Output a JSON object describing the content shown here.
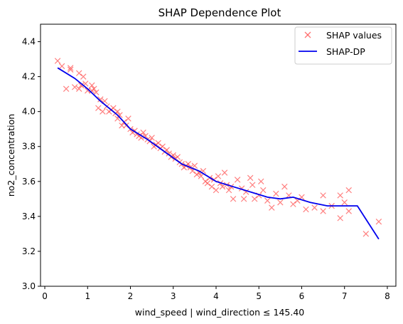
{
  "chart_data": {
    "type": "scatter",
    "title": "SHAP Dependence Plot",
    "xlabel": "wind_speed | wind_direction ≤ 145.40",
    "ylabel": "no2_concentration",
    "xlim": [
      -0.1,
      8.2
    ],
    "ylim": [
      3.0,
      4.5
    ],
    "xticks": [
      0,
      1,
      2,
      3,
      4,
      5,
      6,
      7,
      8
    ],
    "yticks": [
      3.0,
      3.2,
      3.4,
      3.6,
      3.8,
      4.0,
      4.2,
      4.4
    ],
    "grid": false,
    "legend_position": "upper-right",
    "colors": {
      "scatter": "#ff5555",
      "line": "#0000ee"
    },
    "series": [
      {
        "name": "SHAP values",
        "kind": "scatter",
        "marker": "x",
        "points": [
          [
            0.3,
            4.29
          ],
          [
            0.4,
            4.26
          ],
          [
            0.5,
            4.13
          ],
          [
            0.6,
            4.25
          ],
          [
            0.6,
            4.24
          ],
          [
            0.7,
            4.14
          ],
          [
            0.8,
            4.22
          ],
          [
            0.8,
            4.13
          ],
          [
            0.85,
            4.15
          ],
          [
            0.9,
            4.2
          ],
          [
            0.95,
            4.16
          ],
          [
            1.0,
            4.12
          ],
          [
            1.1,
            4.12
          ],
          [
            1.1,
            4.15
          ],
          [
            1.15,
            4.13
          ],
          [
            1.2,
            4.11
          ],
          [
            1.25,
            4.02
          ],
          [
            1.3,
            4.07
          ],
          [
            1.35,
            4.0
          ],
          [
            1.4,
            4.06
          ],
          [
            1.45,
            4.03
          ],
          [
            1.5,
            4.0
          ],
          [
            1.55,
            4.01
          ],
          [
            1.6,
            4.02
          ],
          [
            1.65,
            3.99
          ],
          [
            1.7,
            3.96
          ],
          [
            1.7,
            4.0
          ],
          [
            1.75,
            3.98
          ],
          [
            1.8,
            3.92
          ],
          [
            1.85,
            3.94
          ],
          [
            1.9,
            3.92
          ],
          [
            1.95,
            3.96
          ],
          [
            2.0,
            3.9
          ],
          [
            2.05,
            3.88
          ],
          [
            2.1,
            3.89
          ],
          [
            2.15,
            3.87
          ],
          [
            2.2,
            3.86
          ],
          [
            2.25,
            3.85
          ],
          [
            2.3,
            3.88
          ],
          [
            2.35,
            3.86
          ],
          [
            2.4,
            3.84
          ],
          [
            2.45,
            3.83
          ],
          [
            2.5,
            3.85
          ],
          [
            2.55,
            3.8
          ],
          [
            2.6,
            3.81
          ],
          [
            2.65,
            3.82
          ],
          [
            2.7,
            3.79
          ],
          [
            2.75,
            3.8
          ],
          [
            2.8,
            3.77
          ],
          [
            2.85,
            3.78
          ],
          [
            2.9,
            3.76
          ],
          [
            2.95,
            3.74
          ],
          [
            3.0,
            3.75
          ],
          [
            3.05,
            3.73
          ],
          [
            3.1,
            3.74
          ],
          [
            3.15,
            3.71
          ],
          [
            3.2,
            3.7
          ],
          [
            3.25,
            3.68
          ],
          [
            3.3,
            3.69
          ],
          [
            3.35,
            3.7
          ],
          [
            3.4,
            3.68
          ],
          [
            3.45,
            3.66
          ],
          [
            3.5,
            3.69
          ],
          [
            3.55,
            3.64
          ],
          [
            3.6,
            3.65
          ],
          [
            3.65,
            3.63
          ],
          [
            3.7,
            3.66
          ],
          [
            3.75,
            3.6
          ],
          [
            3.8,
            3.59
          ],
          [
            3.85,
            3.62
          ],
          [
            3.9,
            3.57
          ],
          [
            3.95,
            3.61
          ],
          [
            4.0,
            3.55
          ],
          [
            4.05,
            3.63
          ],
          [
            4.1,
            3.59
          ],
          [
            4.15,
            3.57
          ],
          [
            4.2,
            3.65
          ],
          [
            4.25,
            3.58
          ],
          [
            4.3,
            3.55
          ],
          [
            4.35,
            3.57
          ],
          [
            4.4,
            3.5
          ],
          [
            4.5,
            3.61
          ],
          [
            4.6,
            3.56
          ],
          [
            4.65,
            3.5
          ],
          [
            4.7,
            3.54
          ],
          [
            4.8,
            3.62
          ],
          [
            4.85,
            3.58
          ],
          [
            4.9,
            3.5
          ],
          [
            5.0,
            3.52
          ],
          [
            5.05,
            3.6
          ],
          [
            5.1,
            3.55
          ],
          [
            5.2,
            3.49
          ],
          [
            5.3,
            3.45
          ],
          [
            5.4,
            3.53
          ],
          [
            5.5,
            3.48
          ],
          [
            5.6,
            3.57
          ],
          [
            5.7,
            3.52
          ],
          [
            5.8,
            3.47
          ],
          [
            5.9,
            3.49
          ],
          [
            6.0,
            3.51
          ],
          [
            6.1,
            3.44
          ],
          [
            6.3,
            3.45
          ],
          [
            6.5,
            3.43
          ],
          [
            6.5,
            3.52
          ],
          [
            6.7,
            3.46
          ],
          [
            6.9,
            3.39
          ],
          [
            6.9,
            3.52
          ],
          [
            7.0,
            3.48
          ],
          [
            7.1,
            3.43
          ],
          [
            7.1,
            3.55
          ],
          [
            7.5,
            3.3
          ],
          [
            7.8,
            3.37
          ]
        ]
      },
      {
        "name": "SHAP-DP",
        "kind": "line",
        "points": [
          [
            0.3,
            4.25
          ],
          [
            0.7,
            4.19
          ],
          [
            1.0,
            4.13
          ],
          [
            1.3,
            4.06
          ],
          [
            1.7,
            3.98
          ],
          [
            2.0,
            3.9
          ],
          [
            2.4,
            3.84
          ],
          [
            2.8,
            3.77
          ],
          [
            3.2,
            3.7
          ],
          [
            3.6,
            3.66
          ],
          [
            4.0,
            3.6
          ],
          [
            4.4,
            3.57
          ],
          [
            4.8,
            3.54
          ],
          [
            5.2,
            3.51
          ],
          [
            5.5,
            3.5
          ],
          [
            5.8,
            3.51
          ],
          [
            6.2,
            3.48
          ],
          [
            6.6,
            3.46
          ],
          [
            7.0,
            3.46
          ],
          [
            7.3,
            3.46
          ],
          [
            7.8,
            3.27
          ]
        ]
      }
    ]
  }
}
